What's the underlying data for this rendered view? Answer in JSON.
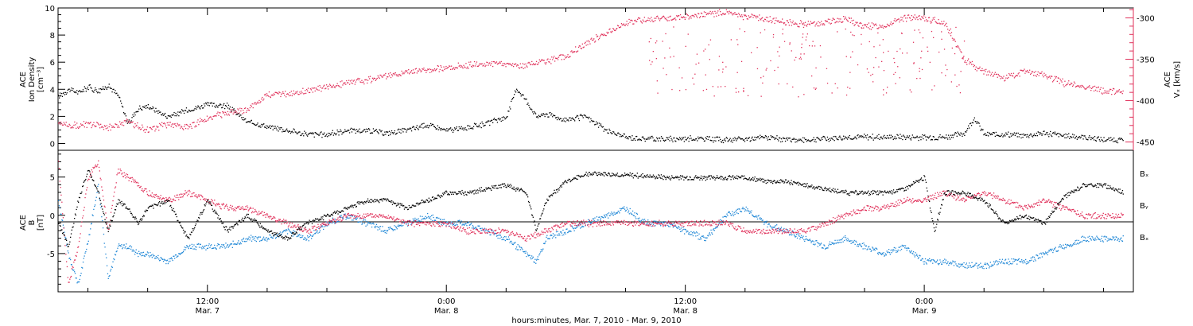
{
  "colors": {
    "black_series": "#000000",
    "red_series": "#e0305a",
    "blue_series": "#1f87d6",
    "axis": "#000000"
  },
  "x_axis": {
    "title": "hours:minutes, Mar.  7, 2010 - Mar.  9, 2010",
    "tick_times": [
      "12:00",
      "0:00",
      "12:00",
      "0:00"
    ],
    "tick_dates": [
      "Mar. 7",
      "Mar. 8",
      "Mar. 8",
      "Mar. 9"
    ]
  },
  "top_panel": {
    "left_label_lines": [
      "ACE",
      "Ion Density",
      "[cm⁻³]"
    ],
    "right_label_lines": [
      "ACE",
      "Vₓ [km/s]"
    ],
    "left_ticks": [
      "10",
      "8",
      "6",
      "4",
      "2",
      "0"
    ],
    "right_ticks": [
      "-300",
      "-350",
      "-400",
      "-450"
    ]
  },
  "bottom_panel": {
    "left_label_lines": [
      "ACE",
      "B",
      "[nT]"
    ],
    "left_ticks": [
      "5",
      "0",
      "-5"
    ],
    "legend": [
      "Bₓ",
      "Bᵧ",
      "Bₓ"
    ]
  },
  "chart_data": [
    {
      "type": "scatter",
      "x_unit": "hours since Mar. 7 2010 0:00",
      "xlim": [
        4.5,
        58.5
      ],
      "ylim": [
        -0.5,
        10
      ],
      "series": [
        {
          "name": "Ion Density",
          "color": "#000000",
          "axis": "left",
          "x": [
            4.5,
            5,
            5.5,
            6,
            6.5,
            7,
            7.5,
            8,
            8.5,
            9,
            10,
            11,
            12,
            13,
            14,
            15,
            16,
            17,
            18,
            19,
            20,
            21,
            22,
            23,
            24,
            25,
            26,
            27,
            27.5,
            28,
            28.5,
            29,
            30,
            31,
            32,
            33,
            34,
            35,
            36,
            37,
            38,
            39,
            40,
            41,
            42,
            43,
            44,
            45,
            46,
            47,
            48,
            49,
            50,
            50.5,
            51,
            52,
            53,
            54,
            55,
            56,
            57,
            58
          ],
          "y": [
            3.5,
            4.0,
            3.8,
            4.2,
            3.9,
            4.3,
            3.6,
            1.5,
            2.6,
            2.8,
            2.0,
            2.5,
            2.9,
            2.8,
            1.6,
            1.3,
            1.0,
            0.7,
            0.7,
            1.0,
            1.0,
            0.8,
            1.0,
            1.4,
            1.0,
            1.2,
            1.5,
            2.0,
            4.1,
            3.2,
            2.0,
            2.2,
            1.8,
            2.0,
            1.0,
            0.5,
            0.4,
            0.35,
            0.4,
            0.4,
            0.3,
            0.35,
            0.5,
            0.3,
            0.3,
            0.4,
            0.5,
            0.5,
            0.5,
            0.5,
            0.5,
            0.5,
            0.8,
            1.9,
            0.7,
            0.7,
            0.6,
            0.8,
            0.6,
            0.5,
            0.3,
            0.3
          ]
        },
        {
          "name": "Vx",
          "color": "#e0305a",
          "axis": "right",
          "x": [
            4.5,
            5,
            6,
            7,
            8,
            9,
            10,
            11,
            12,
            13,
            14,
            15,
            16,
            17,
            18,
            19,
            20,
            21,
            22,
            23,
            24,
            25,
            26,
            27,
            28,
            29,
            30,
            31,
            32,
            33,
            34,
            35,
            36,
            37,
            38,
            39,
            40,
            41,
            42,
            43,
            44,
            45,
            46,
            47,
            48,
            49,
            50,
            51,
            52,
            53,
            54,
            55,
            56,
            57,
            58
          ],
          "y": [
            -425,
            -430,
            -428,
            -432,
            -425,
            -435,
            -428,
            -432,
            -420,
            -415,
            -410,
            -392,
            -392,
            -388,
            -382,
            -378,
            -375,
            -370,
            -365,
            -362,
            -360,
            -357,
            -355,
            -355,
            -357,
            -352,
            -345,
            -330,
            -318,
            -305,
            -302,
            -300,
            -298,
            -295,
            -293,
            -298,
            -300,
            -305,
            -307,
            -305,
            -300,
            -310,
            -308,
            -300,
            -300,
            -305,
            -350,
            -365,
            -372,
            -365,
            -368,
            -378,
            -382,
            -388,
            -388
          ]
        }
      ]
    },
    {
      "type": "line",
      "x_unit": "hours since Mar. 7 2010 0:00",
      "xlim": [
        4.5,
        58.5
      ],
      "ylim": [
        -10,
        8.5
      ],
      "series": [
        {
          "name": "Bx",
          "color": "#000000",
          "x": [
            4.5,
            5,
            5.5,
            6,
            6.5,
            7,
            7.5,
            8,
            8.5,
            9,
            10,
            11,
            12,
            13,
            14,
            15,
            16,
            17,
            18,
            19,
            20,
            21,
            22,
            23,
            24,
            25,
            26,
            27,
            28,
            28.5,
            29,
            30,
            31,
            32,
            33,
            34,
            35,
            36,
            37,
            38,
            39,
            40,
            41,
            42,
            43,
            44,
            45,
            46,
            47,
            48,
            48.5,
            49,
            50,
            51,
            52,
            53,
            54,
            55,
            56,
            57,
            58
          ],
          "y": [
            -1,
            -4,
            2,
            6,
            3,
            -2,
            2,
            1,
            -1,
            1,
            2,
            -3,
            2,
            -2,
            0,
            -2,
            -3,
            -1,
            0,
            1,
            2,
            2,
            1,
            2,
            3,
            3,
            3.5,
            4,
            3,
            -2,
            2,
            4.5,
            5.5,
            5.5,
            5.3,
            5.2,
            5,
            5,
            5,
            5,
            5,
            4.5,
            4.5,
            4,
            3.5,
            3,
            3,
            3,
            3.5,
            5,
            -2,
            3,
            3,
            2,
            -1,
            0,
            -1,
            2.5,
            4,
            4,
            3
          ]
        },
        {
          "name": "By",
          "color": "#1f87d6",
          "x": [
            4.5,
            5,
            5.5,
            6,
            6.5,
            7,
            7.5,
            8,
            8.5,
            9,
            10,
            11,
            12,
            13,
            14,
            15,
            16,
            17,
            18,
            19,
            20,
            21,
            22,
            23,
            24,
            25,
            26,
            27,
            28,
            28.5,
            29,
            30,
            31,
            32,
            33,
            34,
            35,
            36,
            37,
            38,
            39,
            40,
            41,
            42,
            43,
            44,
            45,
            46,
            47,
            48,
            49,
            50,
            51,
            52,
            53,
            54,
            55,
            56,
            57,
            58
          ],
          "y": [
            2,
            -5,
            -9,
            -3,
            4,
            -8,
            -4,
            -4,
            -5,
            -5,
            -6,
            -4,
            -4,
            -4,
            -3,
            -3,
            -2,
            -3,
            -1,
            0,
            -1,
            -2,
            -1,
            0,
            -1,
            -1,
            -2,
            -3,
            -5,
            -6,
            -3,
            -2,
            -1,
            0,
            1,
            -1,
            -1,
            -2,
            -3,
            0,
            1,
            -1,
            -2,
            -3,
            -4,
            -3,
            -4,
            -5,
            -4,
            -6,
            -6,
            -6.5,
            -6.5,
            -6,
            -6,
            -5,
            -4,
            -3,
            -3,
            -3
          ]
        },
        {
          "name": "Bz",
          "color": "#e0305a",
          "x": [
            4.5,
            5,
            5.5,
            6,
            6.5,
            7,
            7.5,
            8,
            8.5,
            9,
            10,
            11,
            12,
            13,
            14,
            15,
            16,
            17,
            18,
            19,
            20,
            21,
            22,
            23,
            24,
            25,
            26,
            27,
            28,
            29,
            30,
            31,
            32,
            33,
            34,
            35,
            36,
            37,
            38,
            39,
            40,
            41,
            42,
            43,
            44,
            45,
            46,
            47,
            48,
            49,
            50,
            51,
            52,
            53,
            54,
            55,
            56,
            57,
            58
          ],
          "y": [
            7,
            -9,
            -4,
            5,
            7,
            -2,
            6,
            5,
            4,
            3,
            2,
            3,
            2,
            1,
            1,
            0,
            -1,
            -2,
            -1,
            0,
            0,
            0,
            -1,
            -1,
            -1,
            -2,
            -2,
            -2,
            -3,
            -2,
            -1,
            -1,
            -1,
            -1,
            -1,
            -1,
            -1,
            -1,
            -1,
            -2,
            -2,
            -2,
            -2,
            -1,
            0,
            1,
            1,
            2,
            2,
            3,
            2,
            3,
            2,
            1,
            2,
            1,
            0,
            0,
            0
          ]
        }
      ]
    }
  ]
}
